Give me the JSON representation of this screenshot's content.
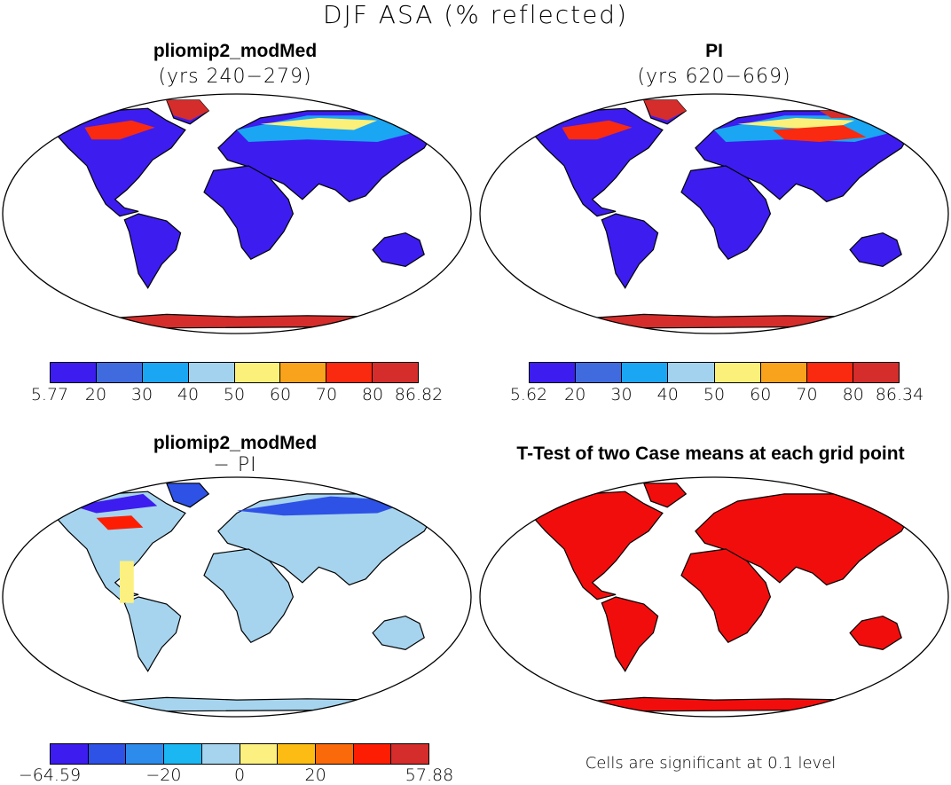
{
  "figure": {
    "title": "DJF ASA (% reflected)"
  },
  "panels": [
    {
      "title": "pliomip2_modMed",
      "subtitle": "(yrs 240−279)",
      "colorbar": {
        "colors": [
          "#3d1cf0",
          "#3f6bde",
          "#1aa6f2",
          "#a3d2ee",
          "#fbf07a",
          "#f9a21b",
          "#f92a0f",
          "#d42d2b"
        ],
        "ticks": [
          "5.77",
          "20",
          "30",
          "40",
          "50",
          "60",
          "70",
          "80",
          "86.82"
        ]
      }
    },
    {
      "title": "PI",
      "subtitle": "(yrs 620−669)",
      "colorbar": {
        "colors": [
          "#3d1cf0",
          "#3f6bde",
          "#1aa6f2",
          "#a3d2ee",
          "#fbf07a",
          "#f9a21b",
          "#f92a0f",
          "#d42d2b"
        ],
        "ticks": [
          "5.62",
          "20",
          "30",
          "40",
          "50",
          "60",
          "70",
          "80",
          "86.34"
        ]
      }
    },
    {
      "title": "pliomip2_modMed",
      "subtitle": "− PI",
      "colorbar": {
        "colors": [
          "#3d1cf0",
          "#2e51e6",
          "#2d8bec",
          "#1bb7f3",
          "#a6d4ee",
          "#fcf180",
          "#fcbc13",
          "#fa6a0a",
          "#fc1d03",
          "#d42d2b"
        ],
        "ticks": [
          "−64.59",
          "−20",
          "0",
          "20",
          "57.88"
        ]
      }
    },
    {
      "title": "T-Test of two Case means at each grid point",
      "note": "Cells are significant at 0.1 level",
      "fill_color": "#f20d0d"
    }
  ]
}
